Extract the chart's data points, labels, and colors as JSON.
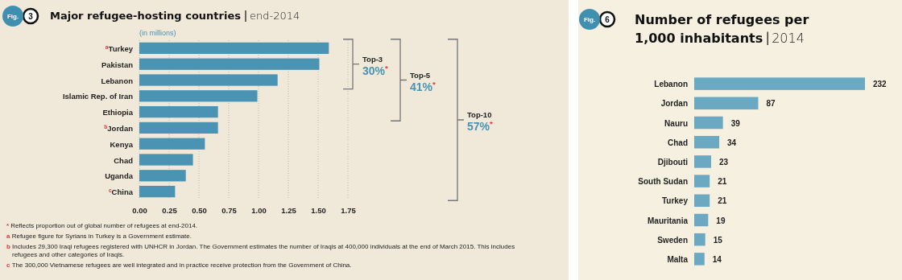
{
  "chart_data": [
    {
      "type": "bar",
      "orientation": "horizontal",
      "title": "Major refugee-hosting countries",
      "subtitle": "end-2014",
      "xlabel": "(in millions)",
      "categories": [
        "$^{a}$Turkey",
        "Pakistan",
        "Lebanon",
        "Islamic Rep. of Iran",
        "Ethiopia",
        "$^{b}$Jordan",
        "Kenya",
        "Chad",
        "Uganda",
        "$^{c}$China"
      ],
      "values": [
        1.59,
        1.51,
        1.16,
        0.99,
        0.66,
        0.66,
        0.55,
        0.45,
        0.39,
        0.3
      ],
      "color": "#4a93b3",
      "xlim": [
        0,
        1.75
      ],
      "xticks": [
        {
          "value": 0,
          "label": "0.00"
        },
        0.25,
        {
          "value": 0.5,
          "label": "0.50"
        },
        0.75,
        {
          "value": 1,
          "label": "1.00"
        },
        1.25,
        {
          "value": 1.5,
          "label": "1.50"
        },
        1.75
      ],
      "grid": "x",
      "annotations": [
        "Fig.",
        "3",
        "Top-3",
        "30%$^{*}$",
        "Top-5",
        "41%$^{*}$",
        "Top-10",
        "57%$^{*}$",
        "* Reflects proportion out of global number of refugees at end-2014.",
        "a Refugee figure for Syrians in Turkey is a Government estimate.",
        "b Includes 29,300 Iraqi refugees registered with UNHCR in Jordan. The Government estimates the number of Iraqis at 400,000 individuals at the end of March 2015. This includes refugees and other categories of Iraqis.",
        "c The 300,000 Vietnamese refugees are well integrated and in practice receive protection from the Government of China."
      ]
    },
    {
      "type": "bar",
      "orientation": "horizontal",
      "title": "Number of refugees per 1,000 inhabitants",
      "subtitle": "2014",
      "categories": [
        "Lebanon",
        "Jordan",
        "Nauru",
        "Chad",
        "Djibouti",
        "South Sudan",
        "Turkey",
        "Mauritania",
        "Sweden",
        "Malta"
      ],
      "values": [
        232,
        87,
        39,
        34,
        23,
        21,
        21,
        19,
        15,
        14
      ],
      "color": "#6aa9c1",
      "data_labels": true,
      "annotations": [
        "Fig.",
        "6"
      ]
    }
  ]
}
